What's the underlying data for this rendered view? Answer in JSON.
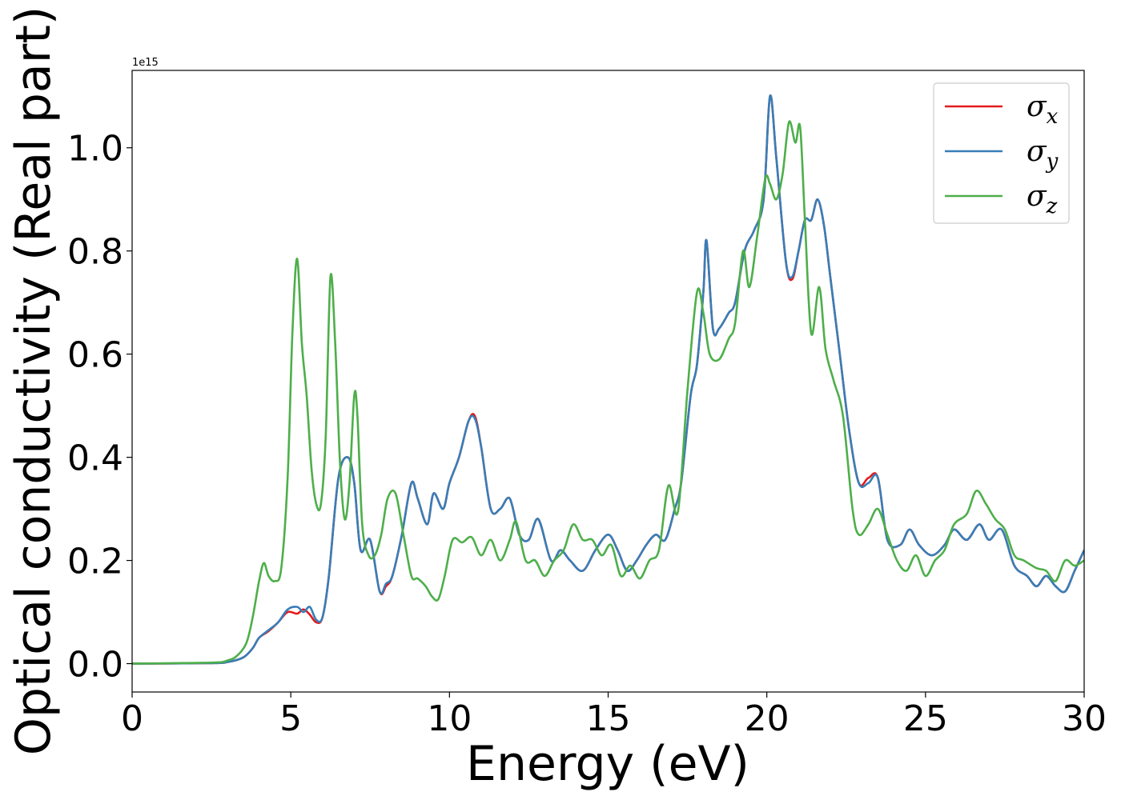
{
  "chart_data": {
    "type": "line",
    "xlabel": "Energy (eV)",
    "ylabel": "Optical conductivity (Real part)",
    "offset_text": "1e15",
    "xlim": [
      0,
      30
    ],
    "ylim": [
      -0.055,
      1.15
    ],
    "y_scale_factor": "1e15",
    "xticks": [
      0,
      5,
      10,
      15,
      20,
      25,
      30
    ],
    "xtick_labels": [
      "0",
      "5",
      "10",
      "15",
      "20",
      "25",
      "30"
    ],
    "yticks": [
      0.0,
      0.2,
      0.4,
      0.6,
      0.8,
      1.0
    ],
    "ytick_labels": [
      "0.0",
      "0.2",
      "0.4",
      "0.6",
      "0.8",
      "1.0"
    ],
    "grid": false,
    "legend_position": "upper right",
    "series": [
      {
        "name": "σx",
        "legend_symbol": "σ",
        "legend_sub": "x",
        "color": "#e41a1c",
        "x": [
          0,
          2.5,
          3.0,
          3.5,
          3.8,
          4.0,
          4.3,
          4.6,
          4.9,
          5.2,
          5.4,
          5.6,
          5.8,
          6.0,
          6.2,
          6.5,
          6.8,
          7.0,
          7.2,
          7.5,
          7.8,
          8.0,
          8.2,
          8.5,
          8.8,
          9.0,
          9.3,
          9.5,
          9.8,
          10.0,
          10.3,
          10.6,
          10.8,
          11.0,
          11.3,
          11.6,
          11.9,
          12.2,
          12.5,
          12.8,
          13.2,
          13.5,
          13.8,
          14.2,
          14.6,
          15.0,
          15.3,
          15.6,
          15.9,
          16.2,
          16.5,
          16.8,
          17.1,
          17.3,
          17.6,
          17.8,
          18.0,
          18.1,
          18.3,
          18.5,
          18.8,
          19.0,
          19.3,
          19.6,
          19.9,
          20.1,
          20.3,
          20.6,
          20.8,
          21.0,
          21.2,
          21.4,
          21.6,
          21.8,
          22.0,
          22.3,
          22.6,
          22.9,
          23.2,
          23.5,
          23.8,
          24.2,
          24.5,
          24.8,
          25.2,
          25.6,
          25.9,
          26.3,
          26.7,
          27.0,
          27.4,
          27.8,
          28.2,
          28.5,
          28.8,
          29.1,
          29.4,
          29.7,
          30.0
        ],
        "y": [
          0.0,
          0.001,
          0.003,
          0.012,
          0.03,
          0.05,
          0.063,
          0.08,
          0.1,
          0.097,
          0.105,
          0.095,
          0.08,
          0.09,
          0.17,
          0.36,
          0.4,
          0.35,
          0.22,
          0.24,
          0.14,
          0.15,
          0.17,
          0.25,
          0.35,
          0.32,
          0.27,
          0.33,
          0.3,
          0.35,
          0.4,
          0.47,
          0.48,
          0.42,
          0.3,
          0.3,
          0.32,
          0.25,
          0.24,
          0.28,
          0.2,
          0.22,
          0.2,
          0.18,
          0.22,
          0.25,
          0.22,
          0.18,
          0.2,
          0.23,
          0.25,
          0.24,
          0.3,
          0.35,
          0.52,
          0.58,
          0.72,
          0.82,
          0.65,
          0.65,
          0.68,
          0.7,
          0.8,
          0.84,
          0.9,
          1.1,
          0.98,
          0.78,
          0.745,
          0.8,
          0.86,
          0.86,
          0.9,
          0.85,
          0.75,
          0.6,
          0.45,
          0.35,
          0.36,
          0.36,
          0.24,
          0.23,
          0.26,
          0.23,
          0.21,
          0.23,
          0.26,
          0.24,
          0.27,
          0.24,
          0.26,
          0.19,
          0.17,
          0.15,
          0.17,
          0.15,
          0.14,
          0.18,
          0.22
        ]
      },
      {
        "name": "σy",
        "legend_symbol": "σ",
        "legend_sub": "y",
        "color": "#377eb8",
        "x": [
          0,
          2.5,
          3.0,
          3.5,
          3.8,
          4.0,
          4.3,
          4.6,
          4.9,
          5.2,
          5.4,
          5.6,
          5.8,
          6.0,
          6.2,
          6.5,
          6.8,
          7.0,
          7.2,
          7.5,
          7.8,
          8.0,
          8.2,
          8.5,
          8.8,
          9.0,
          9.3,
          9.5,
          9.8,
          10.0,
          10.3,
          10.6,
          10.8,
          11.0,
          11.3,
          11.6,
          11.9,
          12.2,
          12.5,
          12.8,
          13.2,
          13.5,
          13.8,
          14.2,
          14.6,
          15.0,
          15.3,
          15.6,
          15.9,
          16.2,
          16.5,
          16.8,
          17.1,
          17.3,
          17.6,
          17.8,
          18.0,
          18.1,
          18.3,
          18.5,
          18.8,
          19.0,
          19.3,
          19.6,
          19.9,
          20.1,
          20.3,
          20.6,
          20.8,
          21.0,
          21.2,
          21.4,
          21.6,
          21.8,
          22.0,
          22.3,
          22.6,
          22.9,
          23.2,
          23.5,
          23.8,
          24.2,
          24.5,
          24.8,
          25.2,
          25.6,
          25.9,
          26.3,
          26.7,
          27.0,
          27.4,
          27.8,
          28.2,
          28.5,
          28.8,
          29.1,
          29.4,
          29.7,
          30.0
        ],
        "y": [
          0.0,
          0.001,
          0.003,
          0.012,
          0.03,
          0.05,
          0.065,
          0.08,
          0.105,
          0.11,
          0.1,
          0.11,
          0.085,
          0.09,
          0.17,
          0.36,
          0.4,
          0.35,
          0.22,
          0.24,
          0.14,
          0.155,
          0.17,
          0.25,
          0.35,
          0.32,
          0.27,
          0.33,
          0.3,
          0.35,
          0.4,
          0.47,
          0.475,
          0.42,
          0.3,
          0.3,
          0.32,
          0.25,
          0.24,
          0.28,
          0.2,
          0.22,
          0.2,
          0.18,
          0.22,
          0.25,
          0.22,
          0.18,
          0.2,
          0.23,
          0.25,
          0.24,
          0.3,
          0.35,
          0.52,
          0.58,
          0.72,
          0.82,
          0.65,
          0.65,
          0.68,
          0.7,
          0.8,
          0.84,
          0.9,
          1.1,
          0.98,
          0.78,
          0.75,
          0.8,
          0.86,
          0.86,
          0.9,
          0.85,
          0.75,
          0.6,
          0.45,
          0.35,
          0.35,
          0.36,
          0.24,
          0.23,
          0.26,
          0.23,
          0.21,
          0.23,
          0.26,
          0.24,
          0.27,
          0.24,
          0.26,
          0.19,
          0.17,
          0.15,
          0.17,
          0.15,
          0.14,
          0.18,
          0.22
        ]
      },
      {
        "name": "σz",
        "legend_symbol": "σ",
        "legend_sub": "z",
        "color": "#4daf4a",
        "x": [
          0,
          2.5,
          3.0,
          3.3,
          3.6,
          3.8,
          4.0,
          4.15,
          4.3,
          4.5,
          4.7,
          4.9,
          5.05,
          5.2,
          5.35,
          5.5,
          5.65,
          5.8,
          5.95,
          6.1,
          6.25,
          6.4,
          6.55,
          6.7,
          6.85,
          7.0,
          7.1,
          7.25,
          7.45,
          7.65,
          7.85,
          8.05,
          8.3,
          8.55,
          8.8,
          9.0,
          9.25,
          9.45,
          9.65,
          9.85,
          10.1,
          10.4,
          10.7,
          11.0,
          11.3,
          11.6,
          11.9,
          12.1,
          12.4,
          12.7,
          13.0,
          13.3,
          13.6,
          13.9,
          14.2,
          14.5,
          14.8,
          15.1,
          15.4,
          15.7,
          16.0,
          16.3,
          16.6,
          16.9,
          17.2,
          17.5,
          17.8,
          18.0,
          18.2,
          18.5,
          18.8,
          19.0,
          19.25,
          19.45,
          19.7,
          19.95,
          20.1,
          20.3,
          20.5,
          20.7,
          20.9,
          21.05,
          21.2,
          21.4,
          21.65,
          21.85,
          22.1,
          22.4,
          22.7,
          22.9,
          23.2,
          23.5,
          23.8,
          24.1,
          24.4,
          24.7,
          25.0,
          25.3,
          25.6,
          25.9,
          26.3,
          26.6,
          26.9,
          27.2,
          27.5,
          27.8,
          28.1,
          28.5,
          28.8,
          29.1,
          29.4,
          29.7,
          30.0
        ],
        "y": [
          0.0,
          0.002,
          0.006,
          0.015,
          0.04,
          0.09,
          0.16,
          0.195,
          0.17,
          0.16,
          0.185,
          0.36,
          0.64,
          0.785,
          0.62,
          0.52,
          0.38,
          0.31,
          0.31,
          0.44,
          0.75,
          0.62,
          0.39,
          0.28,
          0.35,
          0.52,
          0.48,
          0.27,
          0.21,
          0.21,
          0.25,
          0.32,
          0.33,
          0.25,
          0.17,
          0.165,
          0.15,
          0.13,
          0.125,
          0.17,
          0.24,
          0.235,
          0.245,
          0.21,
          0.24,
          0.2,
          0.24,
          0.275,
          0.2,
          0.2,
          0.17,
          0.2,
          0.22,
          0.27,
          0.24,
          0.24,
          0.21,
          0.23,
          0.17,
          0.19,
          0.165,
          0.2,
          0.22,
          0.345,
          0.295,
          0.53,
          0.72,
          0.68,
          0.6,
          0.59,
          0.63,
          0.66,
          0.8,
          0.73,
          0.83,
          0.94,
          0.93,
          0.9,
          0.95,
          1.05,
          1.01,
          1.04,
          0.86,
          0.64,
          0.73,
          0.61,
          0.55,
          0.48,
          0.3,
          0.25,
          0.27,
          0.3,
          0.25,
          0.2,
          0.18,
          0.21,
          0.17,
          0.2,
          0.22,
          0.27,
          0.29,
          0.335,
          0.31,
          0.28,
          0.26,
          0.21,
          0.2,
          0.185,
          0.18,
          0.16,
          0.2,
          0.19,
          0.2
        ]
      }
    ]
  }
}
